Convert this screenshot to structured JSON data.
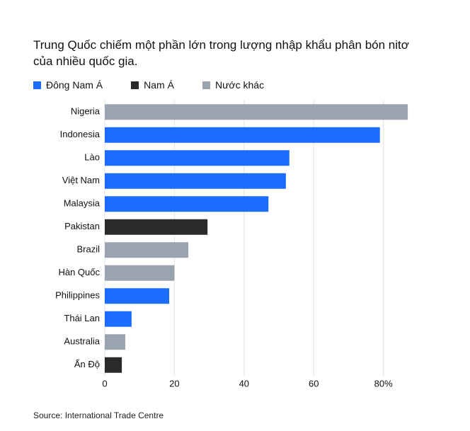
{
  "chart_data": {
    "type": "bar",
    "orientation": "horizontal",
    "title": "Trung Quốc chiếm một phần lớn trong lượng nhập khẩu phân bón nitơ của nhiều quốc gia.",
    "source": "Source: International Trade Centre",
    "categories": [
      "Nigeria",
      "Indonesia",
      "Lào",
      "Việt Nam",
      "Malaysia",
      "Pakistan",
      "Brazil",
      "Hàn Quốc",
      "Philippines",
      "Thái Lan",
      "Australia",
      "Ấn Độ"
    ],
    "series": [
      {
        "name": "Đông Nam Á",
        "color": "#1a6dff",
        "values": [
          null,
          79,
          53,
          52,
          47,
          null,
          null,
          null,
          18.5,
          7.7,
          null,
          null
        ]
      },
      {
        "name": "Nam Á",
        "color": "#2a2a2a",
        "values": [
          null,
          null,
          null,
          null,
          null,
          29.5,
          null,
          null,
          null,
          null,
          null,
          4.9
        ]
      },
      {
        "name": "Nước khác",
        "color": "#9aa3b0",
        "values": [
          87,
          null,
          null,
          null,
          null,
          null,
          24,
          20,
          null,
          null,
          5.9,
          null
        ]
      }
    ],
    "xlim": [
      0,
      88
    ],
    "xticks": [
      0,
      20,
      40,
      60,
      {
        "value": 80,
        "label": "80%"
      }
    ],
    "grid": true
  }
}
